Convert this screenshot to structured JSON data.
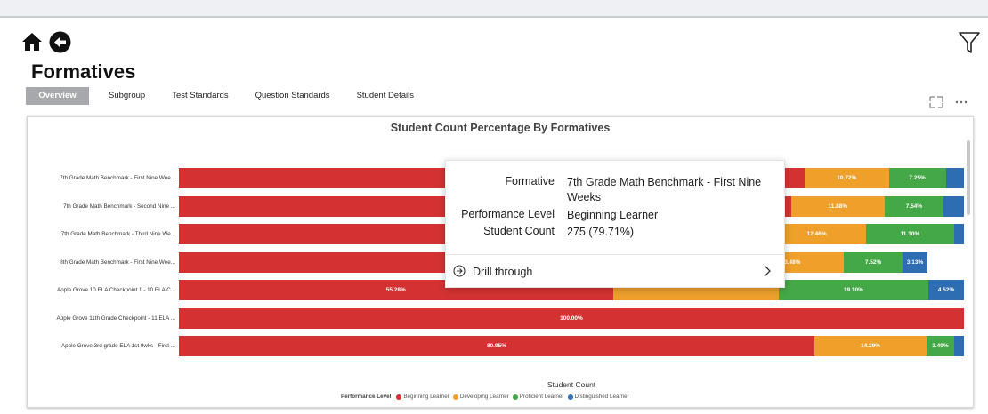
{
  "page": {
    "title": "Formatives"
  },
  "tabs": [
    {
      "label": "Overview",
      "active": true
    },
    {
      "label": "Subgroup",
      "active": false
    },
    {
      "label": "Test Standards",
      "active": false
    },
    {
      "label": "Question Standards",
      "active": false
    },
    {
      "label": "Student Details",
      "active": false
    }
  ],
  "icons": {
    "home": "home-icon",
    "back": "back-arrow-icon",
    "filter": "filter-funnel-icon",
    "focus": "focus-mode-icon",
    "more": "more-options-icon",
    "drill": "drill-through-icon",
    "chevron": "chevron-right-icon"
  },
  "colors": {
    "Beginning Learner": "#d43232",
    "Developing Learner": "#eea02b",
    "Proficient Learner": "#45a847",
    "Distinguished Learner": "#2f6db3"
  },
  "chart_data": {
    "type": "bar",
    "orientation": "horizontal",
    "stacked": "100%",
    "title": "Student Count Percentage By Formatives",
    "xlabel": "Student Count",
    "legend_title": "Performance Level",
    "legend_position": "bottom",
    "categories": [
      "7th Grade Math Benchmark - First Nine Wee...",
      "7th Grade Math Benchmark - Second Nine ...",
      "7th Grade Math Benchmark - Third Nine We...",
      "8th Grade Math Benchmark - First Nine Wee...",
      "Apple Grove 10 ELA Checkpoint 1 - 10 ELA C...",
      "Apple Grove 11th Grade Checkpoint - 11 ELA ...",
      "Apple Grove 3rd grade ELA 1st 9wks - First ..."
    ],
    "series": [
      {
        "name": "Beginning Learner",
        "values": [
          79.71,
          78.0,
          75.02,
          71.21,
          55.28,
          100.0,
          80.95
        ],
        "labels": [
          "",
          "",
          "",
          "",
          "55.28%",
          "100.00%",
          "80.95%"
        ]
      },
      {
        "name": "Developing Learner",
        "values": [
          10.72,
          11.88,
          12.46,
          13.48,
          21.1,
          0,
          14.29
        ],
        "labels": [
          "10.72%",
          "11.88%",
          "12.46%",
          "13.48%",
          "",
          "",
          "14.29%"
        ]
      },
      {
        "name": "Proficient Learner",
        "values": [
          7.25,
          7.54,
          11.3,
          7.52,
          19.1,
          0,
          3.49
        ],
        "labels": [
          "7.25%",
          "7.54%",
          "11.30%",
          "7.52%",
          "19.10%",
          "",
          "3.49%"
        ]
      },
      {
        "name": "Distinguished Learner",
        "values": [
          2.32,
          2.58,
          1.22,
          3.13,
          4.52,
          0,
          1.27
        ],
        "labels": [
          "",
          "",
          "",
          "3.13%",
          "4.52%",
          "",
          ""
        ]
      }
    ]
  },
  "tooltip": {
    "rows": [
      {
        "key": "Formative",
        "value": "7th Grade Math Benchmark - First Nine Weeks"
      },
      {
        "key": "Performance Level",
        "value": "Beginning Learner"
      },
      {
        "key": "Student Count",
        "value": "275 (79.71%)"
      }
    ],
    "drill_label": "Drill through"
  }
}
